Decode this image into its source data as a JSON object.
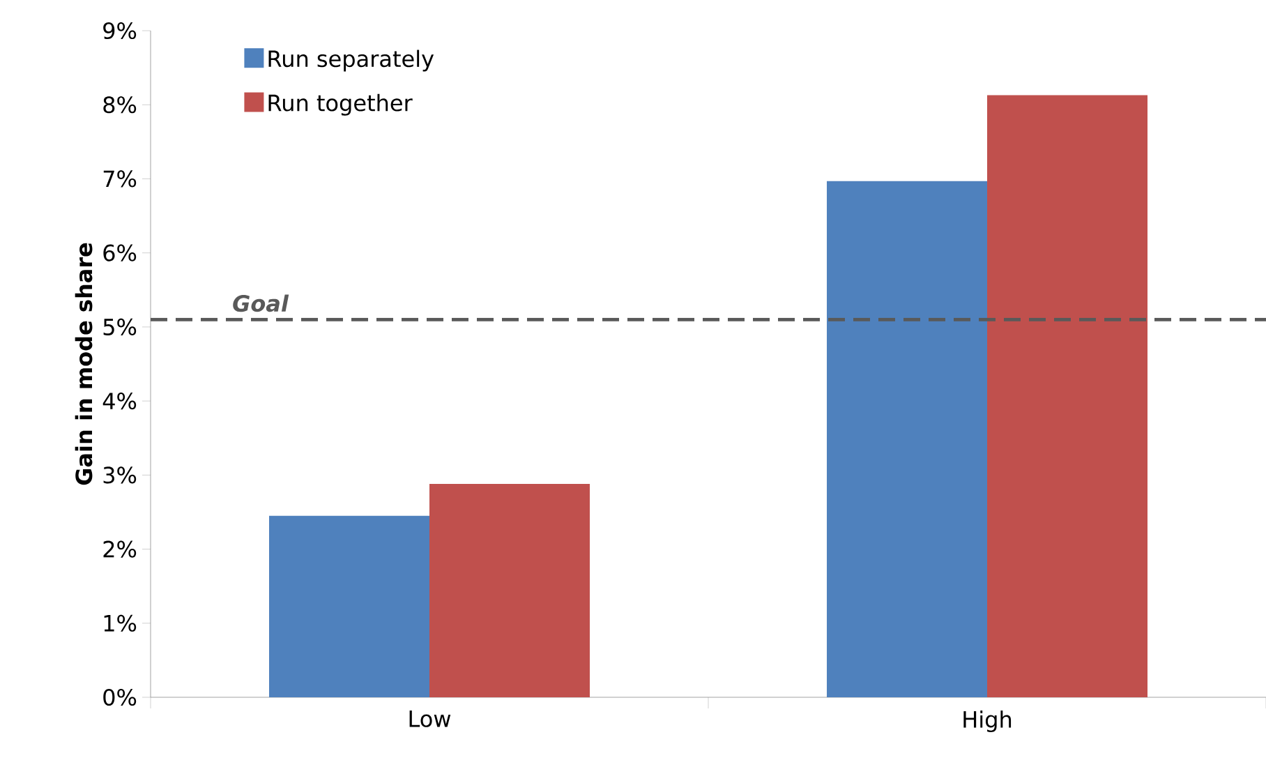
{
  "chart_data": {
    "type": "bar",
    "ylabel": "Gain in mode share",
    "categories": [
      "Low",
      "High"
    ],
    "series": [
      {
        "name": "Run separately",
        "color": "#4f81bd",
        "values": [
          2.45,
          6.97
        ]
      },
      {
        "name": "Run together",
        "color": "#c0504d",
        "values": [
          2.88,
          8.13
        ]
      }
    ],
    "ylim": [
      0,
      9
    ],
    "yticks": [
      {
        "value": 0,
        "label": "0%"
      },
      {
        "value": 1,
        "label": "1%"
      },
      {
        "value": 2,
        "label": "2%"
      },
      {
        "value": 3,
        "label": "3%"
      },
      {
        "value": 4,
        "label": "4%"
      },
      {
        "value": 5,
        "label": "5%"
      },
      {
        "value": 6,
        "label": "6%"
      },
      {
        "value": 7,
        "label": "7%"
      },
      {
        "value": 8,
        "label": "8%"
      },
      {
        "value": 9,
        "label": "9%"
      }
    ],
    "ref_lines": [
      {
        "axis": "y",
        "value": 5.1,
        "label": "Goal",
        "color": "#595959",
        "line_style": "dashed"
      }
    ],
    "grid": false,
    "legend": "top left"
  }
}
